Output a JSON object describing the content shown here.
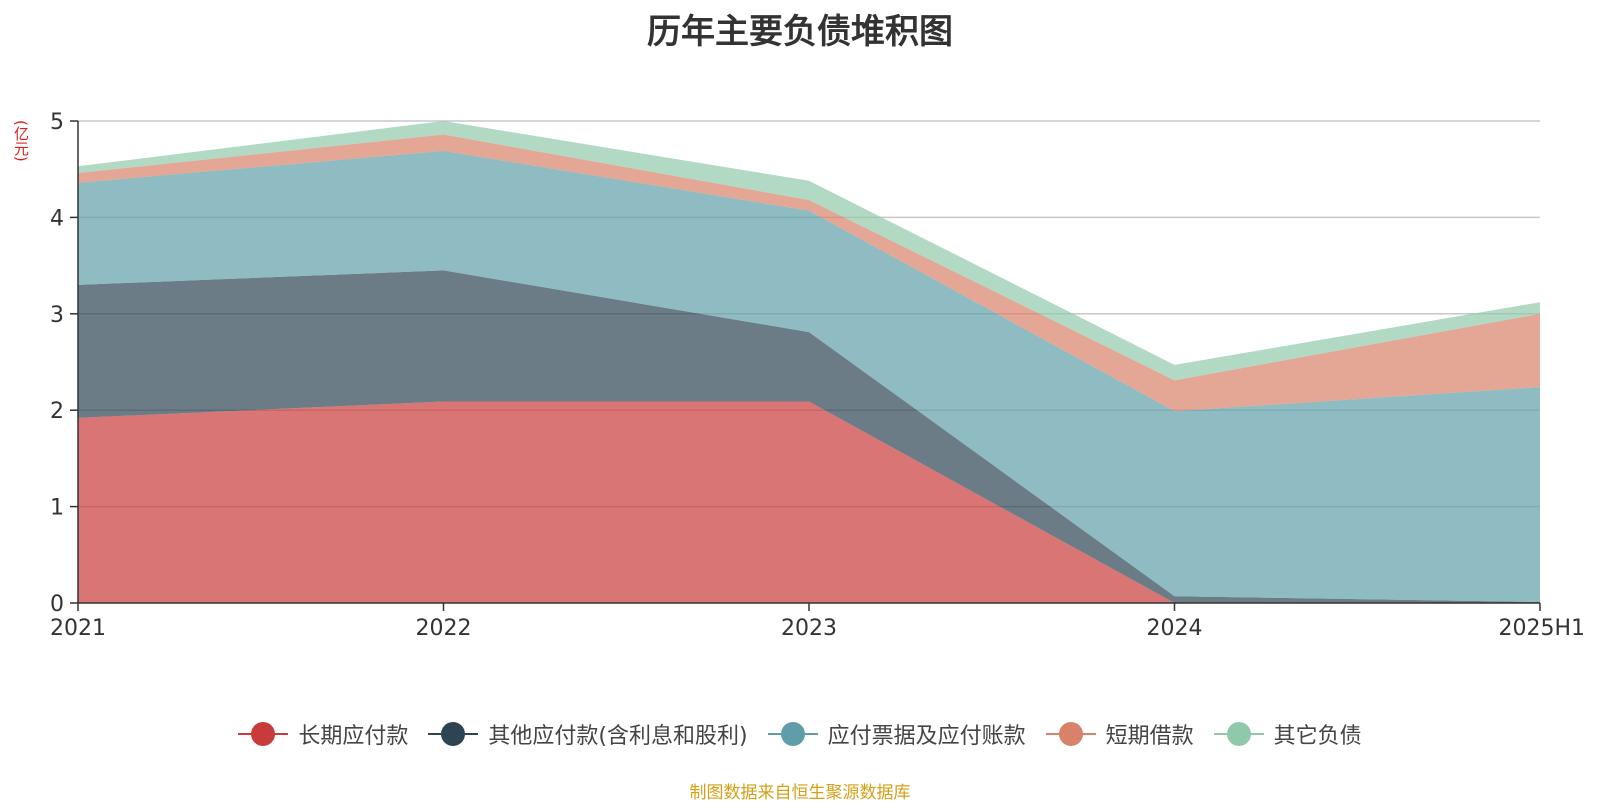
{
  "chart_data": {
    "type": "area",
    "stacked": true,
    "title": "历年主要负债堆积图",
    "ylabel": "(亿元)",
    "xlabel": "",
    "categories": [
      "2021",
      "2022",
      "2023",
      "2024",
      "2025H1"
    ],
    "ylim": [
      0,
      5
    ],
    "yticks": [
      0,
      1,
      2,
      3,
      4,
      5
    ],
    "grid": true,
    "legend_position": "bottom",
    "series": [
      {
        "name": "长期应付款",
        "color": "#c93a3a",
        "values": [
          1.92,
          2.09,
          2.09,
          0.0,
          0.0
        ]
      },
      {
        "name": "其他应付款(含利息和股利)",
        "color": "#2e4453",
        "values": [
          1.38,
          1.36,
          0.72,
          0.07,
          0.01
        ]
      },
      {
        "name": "应付票据及应付账款",
        "color": "#5f9ea8",
        "values": [
          1.06,
          1.24,
          1.26,
          1.92,
          2.23
        ]
      },
      {
        "name": "短期借款",
        "color": "#d9826a",
        "values": [
          0.1,
          0.17,
          0.11,
          0.32,
          0.76
        ]
      },
      {
        "name": "其它负债",
        "color": "#90c9aa",
        "values": [
          0.07,
          0.14,
          0.2,
          0.16,
          0.12
        ]
      }
    ]
  },
  "source_note": "制图数据来自恒生聚源数据库"
}
